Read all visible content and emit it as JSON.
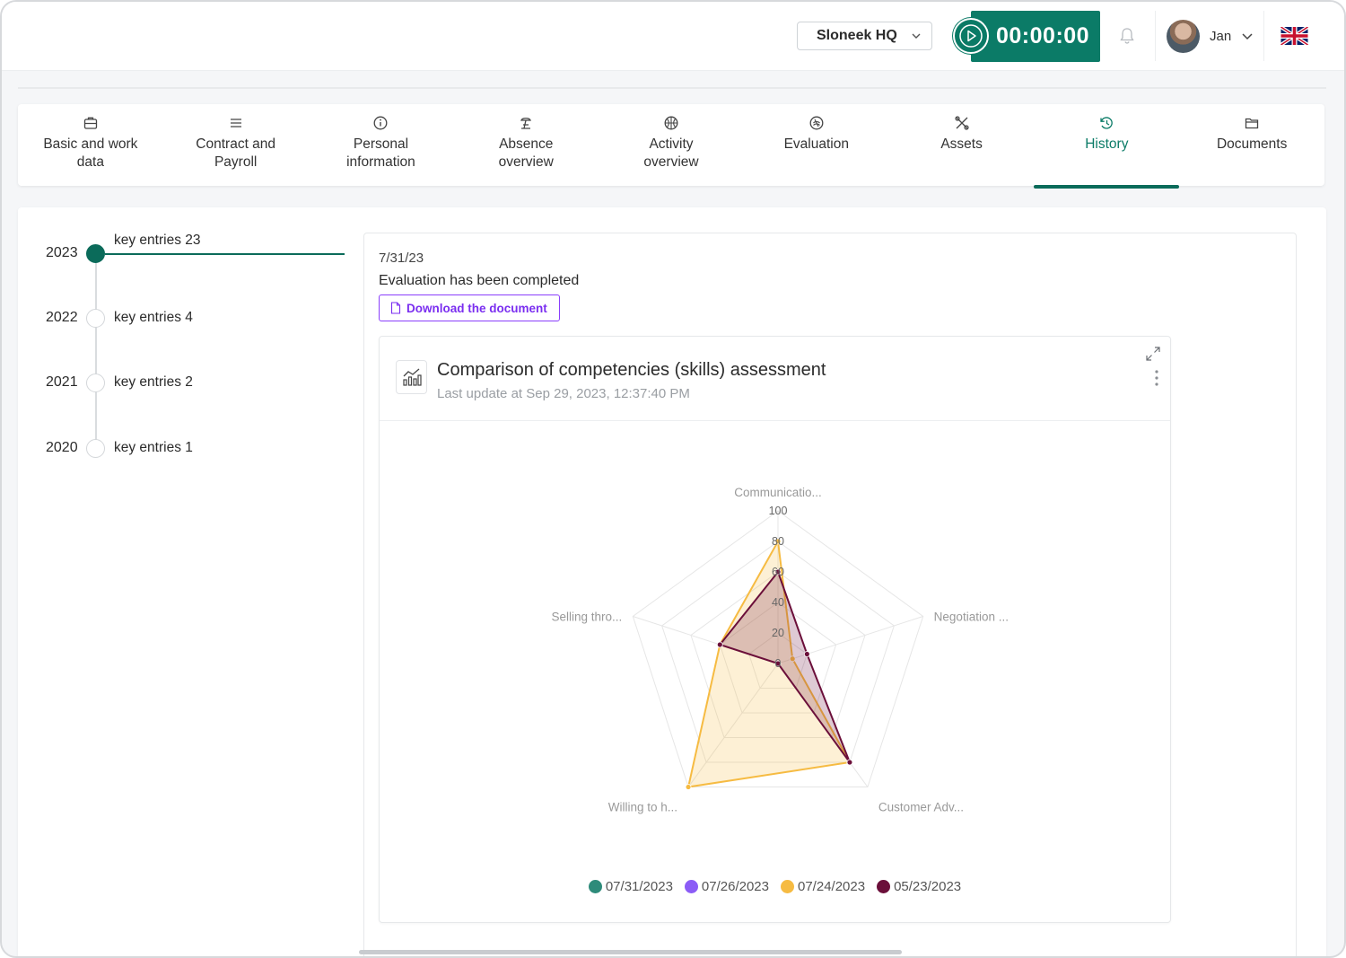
{
  "header": {
    "company": "Sloneek HQ",
    "timer": "00:00:00",
    "user_name": "Jan"
  },
  "tabs": [
    {
      "line1": "Basic and work",
      "line2": "data",
      "icon": "briefcase-icon"
    },
    {
      "line1": "Contract and",
      "line2": "Payroll",
      "icon": "lines-icon"
    },
    {
      "line1": "Personal",
      "line2": "information",
      "icon": "info-icon"
    },
    {
      "line1": "Absence",
      "line2": "overview",
      "icon": "beach-icon"
    },
    {
      "line1": "Activity",
      "line2": "overview",
      "icon": "basketball-icon"
    },
    {
      "line1": "Evaluation",
      "line2": "",
      "icon": "evaluation-icon"
    },
    {
      "line1": "Assets",
      "line2": "",
      "icon": "tools-icon"
    },
    {
      "line1": "History",
      "line2": "",
      "icon": "history-icon"
    },
    {
      "line1": "Documents",
      "line2": "",
      "icon": "folder-icon"
    }
  ],
  "active_tab": "History",
  "timeline": [
    {
      "year": "2023",
      "label": "key entries 23",
      "active": true
    },
    {
      "year": "2022",
      "label": "key entries 4",
      "active": false
    },
    {
      "year": "2021",
      "label": "key entries 2",
      "active": false
    },
    {
      "year": "2020",
      "label": "key entries 1",
      "active": false
    }
  ],
  "entry": {
    "date": "7/31/23",
    "text": "Evaluation has been completed",
    "download_label": "Download the document"
  },
  "card": {
    "title": "Comparison of competencies (skills) assessment",
    "subtitle": "Last update at Sep 29, 2023, 12:37:40 PM"
  },
  "colors": {
    "accent": "#0b7b67",
    "button_purple": "#8a3ffc"
  },
  "chart_data": {
    "type": "radar",
    "axes": [
      "Communicatio...",
      "Negotiation ...",
      "Customer Adv...",
      "Willing to h...",
      "Selling thro..."
    ],
    "ticks": [
      "0",
      "20",
      "40",
      "60",
      "80",
      "100"
    ],
    "rmax": 100,
    "series": [
      {
        "name": "07/31/2023",
        "color": "#2e8b7a",
        "values": [
          null,
          null,
          null,
          null,
          null
        ]
      },
      {
        "name": "07/26/2023",
        "color": "#8b5cf6",
        "values": [
          null,
          null,
          null,
          null,
          null
        ]
      },
      {
        "name": "07/24/2023",
        "color": "#f6bb42",
        "values": [
          80,
          10,
          80,
          100,
          40
        ]
      },
      {
        "name": "05/23/2023",
        "color": "#6b0f3a",
        "values": [
          60,
          20,
          80,
          0,
          40
        ]
      }
    ],
    "legend_position": "bottom"
  }
}
